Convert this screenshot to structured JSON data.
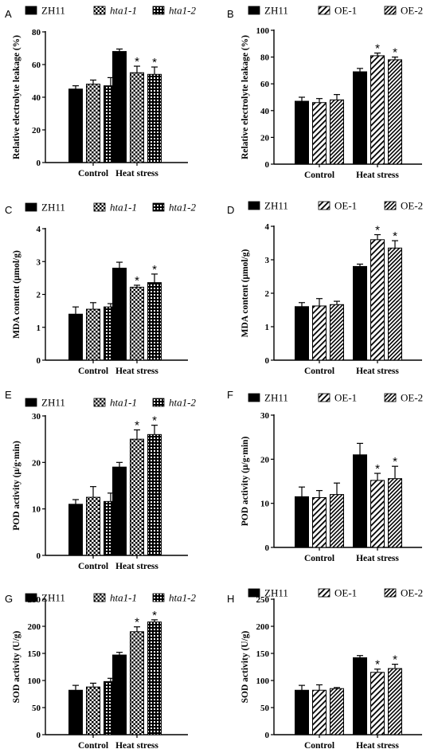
{
  "chart_data": [
    {
      "panel": "A",
      "type": "bar",
      "ylabel": "Relative electrolyte leakage (%)",
      "ylim": [
        0,
        80
      ],
      "yticks": [
        0,
        20,
        40,
        60,
        80
      ],
      "categories": [
        "Control",
        "Heat stress"
      ],
      "series": [
        {
          "name": "ZH11",
          "italic": false,
          "pattern": "solid",
          "values": [
            45,
            68
          ],
          "errors": [
            2,
            1.5
          ],
          "stars": [
            false,
            false
          ]
        },
        {
          "name": "hta1-1",
          "italic": true,
          "pattern": "check",
          "values": [
            48,
            55
          ],
          "errors": [
            2.5,
            4
          ],
          "stars": [
            false,
            true
          ]
        },
        {
          "name": "hta1-2",
          "italic": true,
          "pattern": "grid",
          "values": [
            47,
            54
          ],
          "errors": [
            5,
            4.5
          ],
          "stars": [
            false,
            true
          ]
        }
      ]
    },
    {
      "panel": "B",
      "type": "bar",
      "ylabel": "Relative electrolyte leakage (%)",
      "ylim": [
        0,
        100
      ],
      "yticks": [
        0,
        20,
        40,
        60,
        80,
        100
      ],
      "categories": [
        "Control",
        "Heat stress"
      ],
      "series": [
        {
          "name": "ZH11",
          "italic": false,
          "pattern": "solid",
          "values": [
            47,
            69
          ],
          "errors": [
            3,
            2.5
          ],
          "stars": [
            false,
            false
          ]
        },
        {
          "name": "OE-1",
          "italic": false,
          "pattern": "hatch",
          "values": [
            46,
            81
          ],
          "errors": [
            3,
            2
          ],
          "stars": [
            false,
            true
          ]
        },
        {
          "name": "OE-2",
          "italic": false,
          "pattern": "hatch-dense",
          "values": [
            48,
            78
          ],
          "errors": [
            4,
            2
          ],
          "stars": [
            false,
            true
          ]
        }
      ]
    },
    {
      "panel": "C",
      "type": "bar",
      "ylabel": "MDA content (μmol/g)",
      "ylim": [
        0,
        4
      ],
      "yticks": [
        0,
        1,
        2,
        3,
        4
      ],
      "categories": [
        "Control",
        "Heat stress"
      ],
      "series": [
        {
          "name": "ZH11",
          "italic": false,
          "pattern": "solid",
          "values": [
            1.4,
            2.8
          ],
          "errors": [
            0.22,
            0.18
          ],
          "stars": [
            false,
            false
          ]
        },
        {
          "name": "hta1-1",
          "italic": true,
          "pattern": "check",
          "values": [
            1.55,
            2.22
          ],
          "errors": [
            0.2,
            0.06
          ],
          "stars": [
            false,
            true
          ]
        },
        {
          "name": "hta1-2",
          "italic": true,
          "pattern": "grid",
          "values": [
            1.62,
            2.36
          ],
          "errors": [
            0.1,
            0.26
          ],
          "stars": [
            false,
            true
          ]
        }
      ]
    },
    {
      "panel": "D",
      "type": "bar",
      "ylabel": "MDA content (μmol/g)",
      "ylim": [
        0,
        4
      ],
      "yticks": [
        0,
        1,
        2,
        3,
        4
      ],
      "categories": [
        "Control",
        "Heat stress"
      ],
      "series": [
        {
          "name": "ZH11",
          "italic": false,
          "pattern": "solid",
          "values": [
            1.6,
            2.8
          ],
          "errors": [
            0.12,
            0.07
          ],
          "stars": [
            false,
            false
          ]
        },
        {
          "name": "OE-1",
          "italic": false,
          "pattern": "hatch",
          "values": [
            1.62,
            3.6
          ],
          "errors": [
            0.22,
            0.15
          ],
          "stars": [
            false,
            true
          ]
        },
        {
          "name": "OE-2",
          "italic": false,
          "pattern": "hatch-dense",
          "values": [
            1.66,
            3.35
          ],
          "errors": [
            0.1,
            0.22
          ],
          "stars": [
            false,
            true
          ]
        }
      ]
    },
    {
      "panel": "E",
      "type": "bar",
      "ylabel": "POD activity (μ/g·min)",
      "ylim": [
        0,
        30
      ],
      "yticks": [
        0,
        10,
        20,
        30
      ],
      "categories": [
        "Control",
        "Heat stress"
      ],
      "series": [
        {
          "name": "ZH11",
          "italic": false,
          "pattern": "solid",
          "values": [
            11,
            19
          ],
          "errors": [
            1,
            1
          ],
          "stars": [
            false,
            false
          ]
        },
        {
          "name": "hta1-1",
          "italic": true,
          "pattern": "check",
          "values": [
            12.5,
            25
          ],
          "errors": [
            2.3,
            2
          ],
          "stars": [
            false,
            true
          ]
        },
        {
          "name": "hta1-2",
          "italic": true,
          "pattern": "grid",
          "values": [
            11.6,
            26
          ],
          "errors": [
            1.8,
            2
          ],
          "stars": [
            false,
            true
          ]
        }
      ]
    },
    {
      "panel": "F",
      "type": "bar",
      "ylabel": "POD activity (μ/g·min)",
      "ylim": [
        0,
        30
      ],
      "yticks": [
        0,
        10,
        20,
        30
      ],
      "categories": [
        "Control",
        "Heat stress"
      ],
      "series": [
        {
          "name": "ZH11",
          "italic": false,
          "pattern": "solid",
          "values": [
            11.5,
            21
          ],
          "errors": [
            2.2,
            2.6
          ],
          "stars": [
            false,
            false
          ]
        },
        {
          "name": "OE-1",
          "italic": false,
          "pattern": "hatch",
          "values": [
            11.3,
            15.2
          ],
          "errors": [
            1.6,
            1.6
          ],
          "stars": [
            false,
            true
          ]
        },
        {
          "name": "OE-2",
          "italic": false,
          "pattern": "hatch-dense",
          "values": [
            12,
            15.6
          ],
          "errors": [
            2.6,
            2.8
          ],
          "stars": [
            false,
            true
          ]
        }
      ]
    },
    {
      "panel": "G",
      "type": "bar",
      "ylabel": "SOD activity (U/g)",
      "ylim": [
        0,
        250
      ],
      "yticks": [
        0,
        50,
        100,
        150,
        200,
        250
      ],
      "categories": [
        "Control",
        "Heat stress"
      ],
      "series": [
        {
          "name": "ZH11",
          "italic": false,
          "pattern": "solid",
          "values": [
            82,
            147
          ],
          "errors": [
            9,
            5
          ],
          "stars": [
            false,
            false
          ]
        },
        {
          "name": "hta1-1",
          "italic": true,
          "pattern": "check",
          "values": [
            88,
            190
          ],
          "errors": [
            7,
            9
          ],
          "stars": [
            false,
            true
          ]
        },
        {
          "name": "hta1-2",
          "italic": true,
          "pattern": "grid",
          "values": [
            98,
            208
          ],
          "errors": [
            6,
            4
          ],
          "stars": [
            false,
            true
          ]
        }
      ]
    },
    {
      "panel": "H",
      "type": "bar",
      "ylabel": "SOD activity (U/g)",
      "ylim": [
        0,
        250
      ],
      "yticks": [
        0,
        50,
        100,
        150,
        200,
        250
      ],
      "categories": [
        "Control",
        "Heat stress"
      ],
      "series": [
        {
          "name": "ZH11",
          "italic": false,
          "pattern": "solid",
          "values": [
            82,
            142
          ],
          "errors": [
            9,
            4
          ],
          "stars": [
            false,
            false
          ]
        },
        {
          "name": "OE-1",
          "italic": false,
          "pattern": "hatch",
          "values": [
            82,
            115
          ],
          "errors": [
            10,
            6
          ],
          "stars": [
            false,
            true
          ]
        },
        {
          "name": "OE-2",
          "italic": false,
          "pattern": "hatch-dense",
          "values": [
            85,
            122
          ],
          "errors": [
            2,
            8
          ],
          "stars": [
            false,
            true
          ]
        }
      ]
    }
  ]
}
